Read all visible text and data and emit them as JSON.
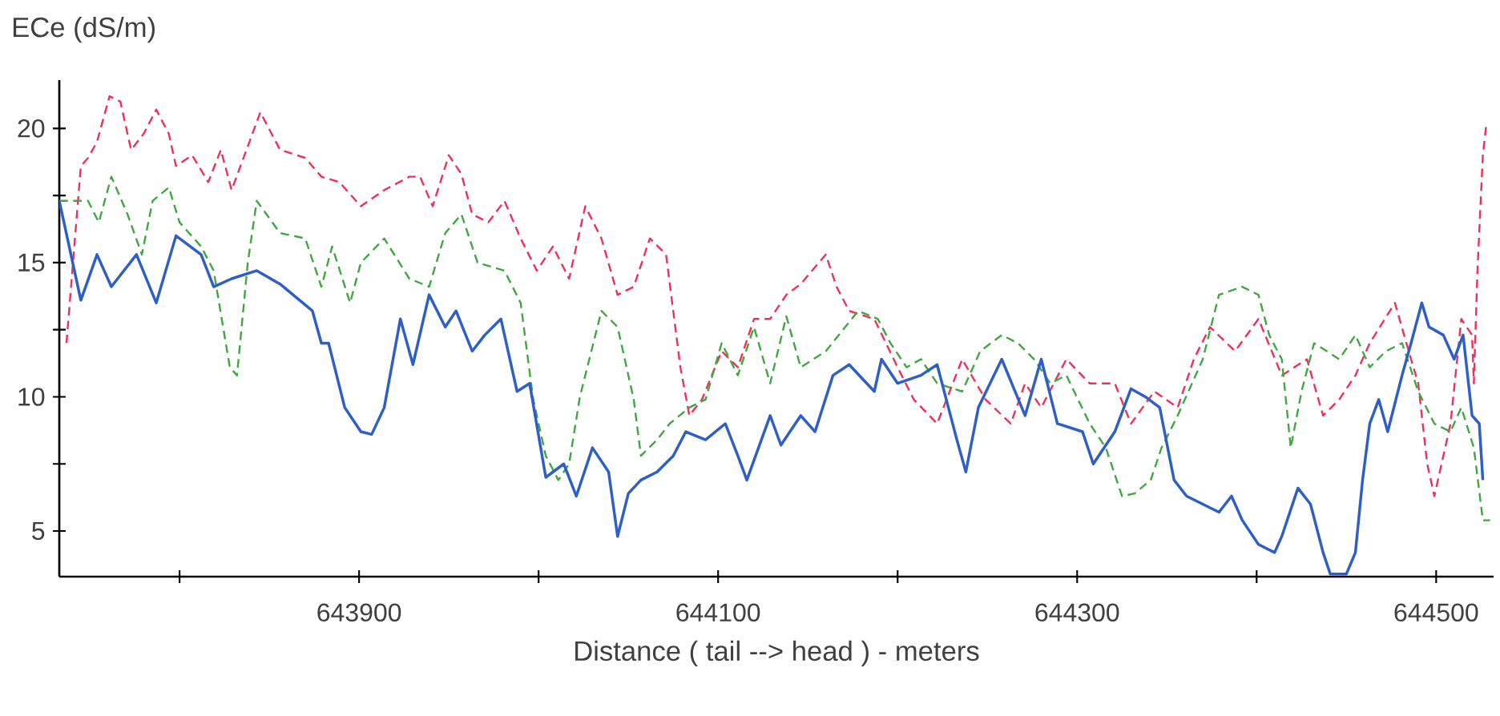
{
  "chart_data": {
    "type": "line",
    "xlabel": "Distance ( tail --> head ) - meters",
    "ylabel": "ECe (dS/m)",
    "xlim": [
      643733,
      644532
    ],
    "ylim": [
      3.3,
      21.8
    ],
    "xticks": [
      {
        "value": 643800,
        "label": null
      },
      643900,
      {
        "value": 644000,
        "label": null
      },
      644100,
      {
        "value": 644200,
        "label": null
      },
      644300,
      {
        "value": 644400,
        "label": null
      },
      644500
    ],
    "yticks": [
      5,
      {
        "value": 7.5,
        "label": null
      },
      10,
      {
        "value": 12.5,
        "label": null
      },
      15,
      {
        "value": 17.5,
        "label": null
      },
      20
    ],
    "grid": false,
    "marker": "none",
    "series": [
      {
        "color": "#f0305a",
        "line_style": "dashed",
        "x": [
          643737,
          643745,
          643749,
          643754,
          643761,
          643767,
          643773,
          643780,
          643787,
          643794,
          643798,
          643807,
          643816,
          643823,
          643829,
          643845,
          643856,
          643870,
          643879,
          643889,
          643901,
          643914,
          643928,
          643934,
          643941,
          643950,
          643957,
          643963,
          643972,
          643981,
          643990,
          643999,
          644008,
          644017,
          644026,
          644035,
          644044,
          644053,
          644062,
          644071,
          644079,
          644084,
          644091,
          644102,
          644111,
          644120,
          644129,
          644138,
          644146,
          644160,
          644166,
          644173,
          644187,
          644200,
          644209,
          644222,
          644236,
          644249,
          644263,
          644271,
          644280,
          644294,
          644307,
          644321,
          644330,
          644343,
          644356,
          644365,
          644374,
          644388,
          644401,
          644414,
          644428,
          644437,
          644446,
          644455,
          644463,
          644477,
          644486,
          644490,
          644495,
          644499,
          644508,
          644514,
          644520,
          644521,
          644523,
          644526,
          644528
        ],
        "values": [
          12.0,
          18.6,
          18.9,
          19.5,
          21.2,
          21.0,
          19.2,
          19.8,
          20.7,
          19.8,
          18.6,
          19.0,
          18.0,
          19.2,
          17.7,
          20.6,
          19.2,
          18.9,
          18.2,
          18.0,
          17.1,
          17.7,
          18.2,
          18.2,
          17.1,
          19.0,
          18.3,
          16.8,
          16.5,
          17.3,
          15.9,
          14.7,
          15.6,
          14.4,
          17.1,
          15.9,
          13.8,
          14.1,
          15.9,
          15.3,
          11.1,
          9.3,
          9.9,
          11.7,
          11.1,
          12.9,
          12.9,
          13.8,
          14.2,
          15.3,
          14.1,
          13.2,
          12.9,
          11.1,
          9.9,
          9.0,
          11.4,
          9.9,
          9.0,
          10.5,
          9.6,
          11.4,
          10.5,
          10.5,
          9.0,
          10.2,
          9.6,
          11.4,
          12.6,
          11.7,
          12.9,
          10.8,
          11.4,
          9.3,
          9.9,
          10.8,
          12.0,
          13.5,
          11.4,
          10.5,
          7.5,
          6.3,
          9.0,
          12.9,
          12.3,
          10.5,
          14.7,
          19.0,
          20.2
        ]
      },
      {
        "color": "#3fa83f",
        "line_style": "dashed",
        "x": [
          643733,
          643740,
          643749,
          643755,
          643762,
          643771,
          643779,
          643785,
          643794,
          643800,
          643812,
          643819,
          643828,
          643832,
          643838,
          643843,
          643856,
          643870,
          643879,
          643885,
          643895,
          643901,
          643914,
          643928,
          643939,
          643948,
          643957,
          643966,
          643981,
          643990,
          643997,
          644004,
          644011,
          644017,
          644023,
          644035,
          644044,
          644053,
          644057,
          644066,
          644073,
          644084,
          644093,
          644102,
          644111,
          644120,
          644129,
          644138,
          644146,
          644160,
          644178,
          644189,
          644196,
          644205,
          644213,
          644222,
          644236,
          644246,
          644258,
          644267,
          644276,
          644285,
          644294,
          644307,
          644316,
          644325,
          644332,
          644341,
          644347,
          644356,
          644370,
          644379,
          644392,
          644401,
          644407,
          644414,
          644419,
          644425,
          644432,
          644446,
          644455,
          644463,
          644472,
          644481,
          644490,
          644499,
          644508,
          644514,
          644521,
          644526,
          644530
        ],
        "values": [
          17.3,
          17.3,
          17.3,
          16.5,
          18.2,
          16.8,
          15.3,
          17.3,
          17.8,
          16.5,
          15.6,
          14.7,
          11.1,
          10.8,
          15.0,
          17.3,
          16.1,
          15.9,
          14.1,
          15.6,
          13.5,
          15.0,
          15.9,
          14.4,
          14.1,
          16.1,
          16.8,
          15.0,
          14.7,
          13.5,
          9.9,
          7.8,
          6.9,
          7.5,
          10.0,
          13.2,
          12.6,
          9.9,
          7.8,
          8.4,
          9.0,
          9.6,
          9.9,
          12.0,
          10.8,
          12.6,
          10.5,
          13.0,
          11.1,
          11.7,
          13.2,
          12.9,
          12.0,
          11.1,
          11.4,
          10.5,
          10.2,
          11.7,
          12.3,
          12.0,
          11.4,
          10.5,
          10.8,
          9.0,
          8.1,
          6.3,
          6.4,
          6.9,
          8.1,
          9.3,
          11.4,
          13.8,
          14.1,
          13.8,
          12.3,
          11.4,
          8.1,
          10.2,
          12.0,
          11.4,
          12.3,
          11.1,
          11.7,
          12.0,
          10.2,
          9.0,
          8.7,
          9.6,
          8.1,
          5.4,
          5.4
        ]
      },
      {
        "color": "#2e5fc8",
        "line_style": "solid",
        "x": [
          643733,
          643745,
          643754,
          643762,
          643776,
          643787,
          643798,
          643812,
          643819,
          643829,
          643843,
          643856,
          643874,
          643879,
          643883,
          643892,
          643901,
          643907,
          643914,
          643923,
          643930,
          643939,
          643948,
          643954,
          643963,
          643970,
          643979,
          643988,
          643995,
          644004,
          644014,
          644021,
          644030,
          644039,
          644044,
          644050,
          644057,
          644066,
          644075,
          644082,
          644093,
          644104,
          644111,
          644116,
          644129,
          644135,
          644146,
          644154,
          644164,
          644173,
          644187,
          644191,
          644200,
          644213,
          644222,
          644233,
          644238,
          644245,
          644258,
          644271,
          644280,
          644289,
          644303,
          644309,
          644321,
          644330,
          644338,
          644346,
          644354,
          644361,
          644370,
          644379,
          644386,
          644392,
          644401,
          644410,
          644414,
          644423,
          644430,
          644437,
          644441,
          644450,
          644455,
          644459,
          644463,
          644468,
          644473,
          644481,
          644486,
          644492,
          644496,
          644504,
          644510,
          644515,
          644520,
          644524,
          644526
        ],
        "values": [
          17.3,
          13.6,
          15.3,
          14.1,
          15.3,
          13.5,
          16.0,
          15.3,
          14.1,
          14.4,
          14.7,
          14.2,
          13.2,
          12.0,
          12.0,
          9.6,
          8.7,
          8.6,
          9.6,
          12.9,
          11.2,
          13.8,
          12.6,
          13.2,
          11.7,
          12.3,
          12.9,
          10.2,
          10.5,
          7.0,
          7.5,
          6.3,
          8.1,
          7.2,
          4.8,
          6.4,
          6.9,
          7.2,
          7.8,
          8.7,
          8.4,
          9.0,
          7.8,
          6.9,
          9.3,
          8.2,
          9.3,
          8.7,
          10.8,
          11.2,
          10.2,
          11.4,
          10.5,
          10.8,
          11.2,
          8.4,
          7.2,
          9.6,
          11.4,
          9.3,
          11.4,
          9.0,
          8.7,
          7.5,
          8.7,
          10.3,
          10.0,
          9.6,
          6.9,
          6.3,
          6.0,
          5.7,
          6.3,
          5.4,
          4.5,
          4.2,
          4.8,
          6.6,
          6.0,
          4.2,
          3.4,
          3.4,
          4.2,
          6.9,
          9.0,
          9.9,
          8.7,
          10.8,
          12.0,
          13.5,
          12.6,
          12.3,
          11.4,
          12.3,
          9.3,
          9.0,
          6.9
        ]
      }
    ]
  }
}
